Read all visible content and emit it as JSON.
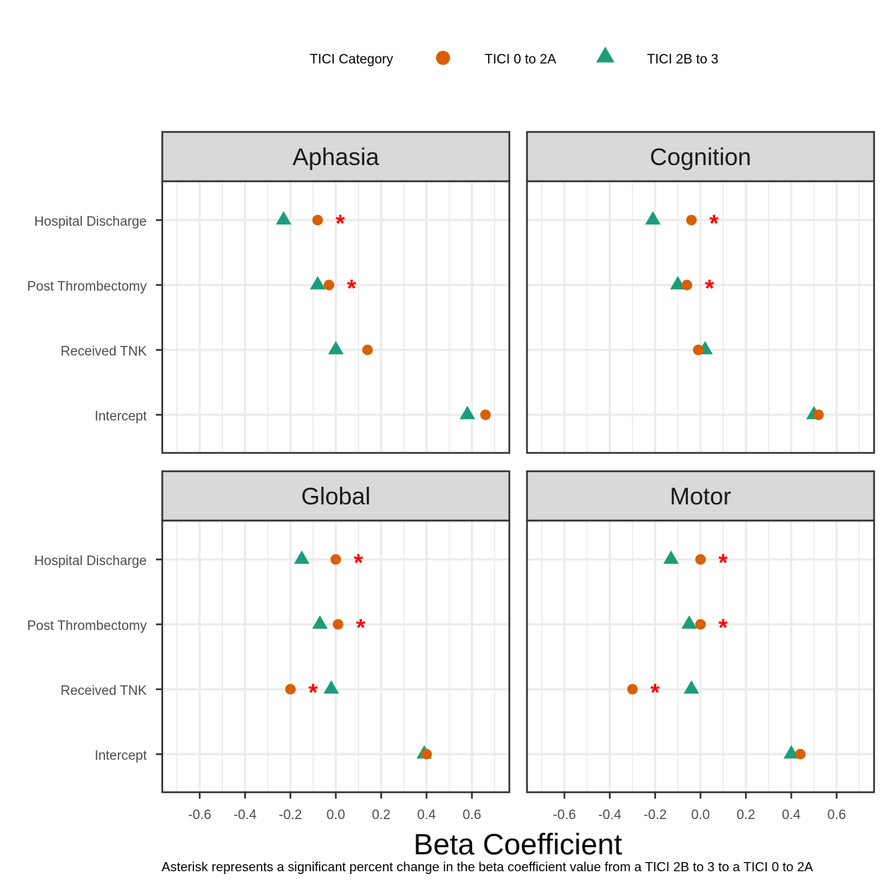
{
  "chart_data": {
    "type": "scatter",
    "xlabel": "Beta Coefficient",
    "xlim": [
      -0.765,
      0.765
    ],
    "x_ticks": [
      -0.6,
      -0.4,
      -0.2,
      0.0,
      0.2,
      0.4,
      0.6
    ],
    "x_tick_labels": [
      "-0.6",
      "-0.4",
      "-0.2",
      "0.0",
      "0.2",
      "0.4",
      "0.6"
    ],
    "categories": [
      "Hospital Discharge",
      "Post Thrombectomy",
      "Received TNK",
      "Intercept"
    ],
    "grid": true,
    "legend": {
      "title": "TICI Category",
      "position": "top",
      "entries": [
        {
          "label": "TICI 0 to 2A",
          "shape": "circle",
          "color": "#D95F02"
        },
        {
          "label": "TICI 2B to 3",
          "shape": "triangle",
          "color": "#1B9E77"
        }
      ]
    },
    "significance_marker": {
      "symbol": "*",
      "color": "#FF0000"
    },
    "panels": [
      {
        "title": "Aphasia",
        "series": [
          {
            "name": "TICI 0 to 2A",
            "values": [
              -0.08,
              -0.03,
              0.14,
              0.66
            ]
          },
          {
            "name": "TICI 2B to 3",
            "values": [
              -0.23,
              -0.08,
              0.0,
              0.58
            ]
          }
        ],
        "significant": [
          true,
          true,
          false,
          false
        ]
      },
      {
        "title": "Cognition",
        "series": [
          {
            "name": "TICI 0 to 2A",
            "values": [
              -0.04,
              -0.06,
              -0.01,
              0.52
            ]
          },
          {
            "name": "TICI 2B to 3",
            "values": [
              -0.21,
              -0.1,
              0.02,
              0.5
            ]
          }
        ],
        "significant": [
          true,
          true,
          false,
          false
        ]
      },
      {
        "title": "Global",
        "series": [
          {
            "name": "TICI 0 to 2A",
            "values": [
              0.0,
              0.01,
              -0.2,
              0.4
            ]
          },
          {
            "name": "TICI 2B to 3",
            "values": [
              -0.15,
              -0.07,
              -0.02,
              0.39
            ]
          }
        ],
        "significant": [
          true,
          true,
          true,
          false
        ]
      },
      {
        "title": "Motor",
        "series": [
          {
            "name": "TICI 0 to 2A",
            "values": [
              0.0,
              0.0,
              -0.3,
              0.44
            ]
          },
          {
            "name": "TICI 2B to 3",
            "values": [
              -0.13,
              -0.05,
              -0.04,
              0.4
            ]
          }
        ],
        "significant": [
          true,
          true,
          true,
          false
        ]
      }
    ]
  },
  "caption": "Asterisk represents a significant percent change in the beta coefficient value from a TICI 2B to 3 to a TICI 0 to 2A"
}
